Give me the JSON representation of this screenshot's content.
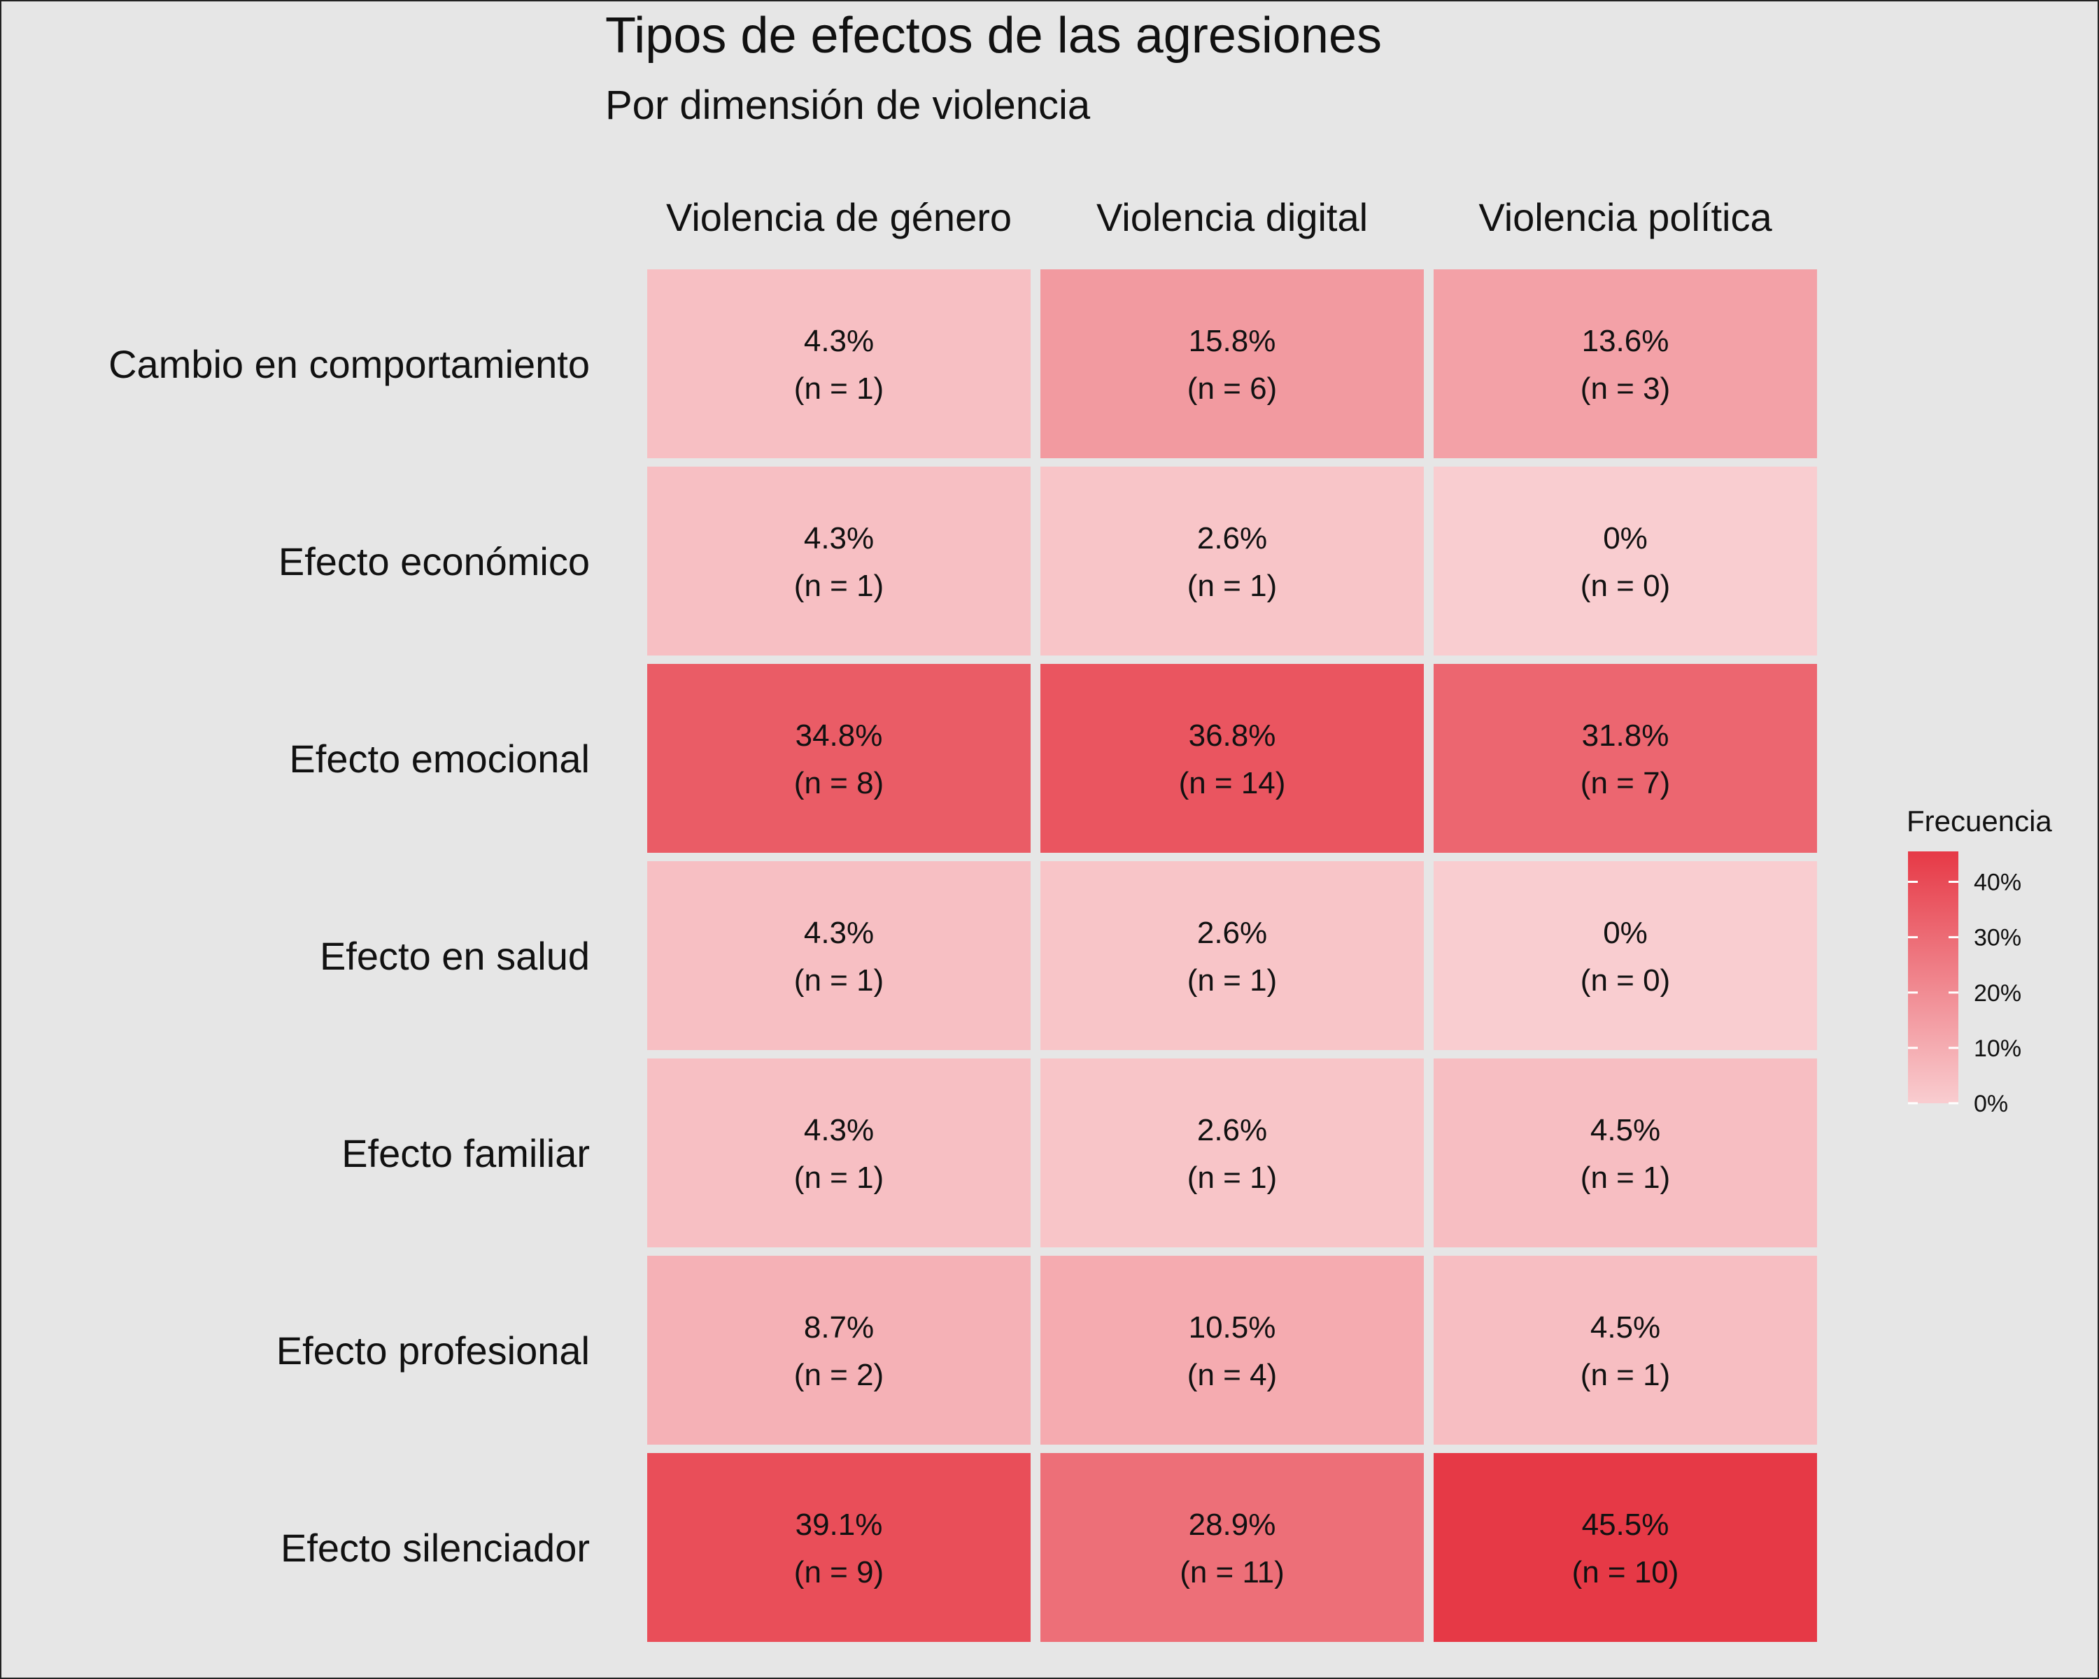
{
  "chart_data": {
    "type": "heatmap",
    "title": "Tipos de efectos de las agresiones",
    "subtitle": "Por dimensión de violencia",
    "columns": [
      "Violencia de género",
      "Violencia digital",
      "Violencia política"
    ],
    "rows": [
      "Cambio en comportamiento",
      "Efecto económico",
      "Efecto emocional",
      "Efecto en salud",
      "Efecto familiar",
      "Efecto profesional",
      "Efecto silenciador"
    ],
    "cells": [
      [
        {
          "pct_label": "4.3%",
          "n_label": "(n = 1)",
          "value": 4.3
        },
        {
          "pct_label": "15.8%",
          "n_label": "(n = 6)",
          "value": 15.8
        },
        {
          "pct_label": "13.6%",
          "n_label": "(n = 3)",
          "value": 13.6
        }
      ],
      [
        {
          "pct_label": "4.3%",
          "n_label": "(n = 1)",
          "value": 4.3
        },
        {
          "pct_label": "2.6%",
          "n_label": "(n = 1)",
          "value": 2.6
        },
        {
          "pct_label": "0%",
          "n_label": "(n = 0)",
          "value": 0
        }
      ],
      [
        {
          "pct_label": "34.8%",
          "n_label": "(n = 8)",
          "value": 34.8
        },
        {
          "pct_label": "36.8%",
          "n_label": "(n = 14)",
          "value": 36.8
        },
        {
          "pct_label": "31.8%",
          "n_label": "(n = 7)",
          "value": 31.8
        }
      ],
      [
        {
          "pct_label": "4.3%",
          "n_label": "(n = 1)",
          "value": 4.3
        },
        {
          "pct_label": "2.6%",
          "n_label": "(n = 1)",
          "value": 2.6
        },
        {
          "pct_label": "0%",
          "n_label": "(n = 0)",
          "value": 0
        }
      ],
      [
        {
          "pct_label": "4.3%",
          "n_label": "(n = 1)",
          "value": 4.3
        },
        {
          "pct_label": "2.6%",
          "n_label": "(n = 1)",
          "value": 2.6
        },
        {
          "pct_label": "4.5%",
          "n_label": "(n = 1)",
          "value": 4.5
        }
      ],
      [
        {
          "pct_label": "8.7%",
          "n_label": "(n = 2)",
          "value": 8.7
        },
        {
          "pct_label": "10.5%",
          "n_label": "(n = 4)",
          "value": 10.5
        },
        {
          "pct_label": "4.5%",
          "n_label": "(n = 1)",
          "value": 4.5
        }
      ],
      [
        {
          "pct_label": "39.1%",
          "n_label": "(n = 9)",
          "value": 39.1
        },
        {
          "pct_label": "28.9%",
          "n_label": "(n = 11)",
          "value": 28.9
        },
        {
          "pct_label": "45.5%",
          "n_label": "(n = 10)",
          "value": 45.5
        }
      ]
    ],
    "legend": {
      "title": "Frecuencia",
      "ticks": [
        0,
        10,
        20,
        30,
        40
      ],
      "tick_labels": [
        "0%",
        "10%",
        "20%",
        "30%",
        "40%"
      ],
      "range": [
        0,
        45.5
      ],
      "low_color": "#f9cdd0",
      "high_color": "#e63946",
      "placement": "right"
    },
    "background_color": "#e6e6e6",
    "grid": false
  }
}
